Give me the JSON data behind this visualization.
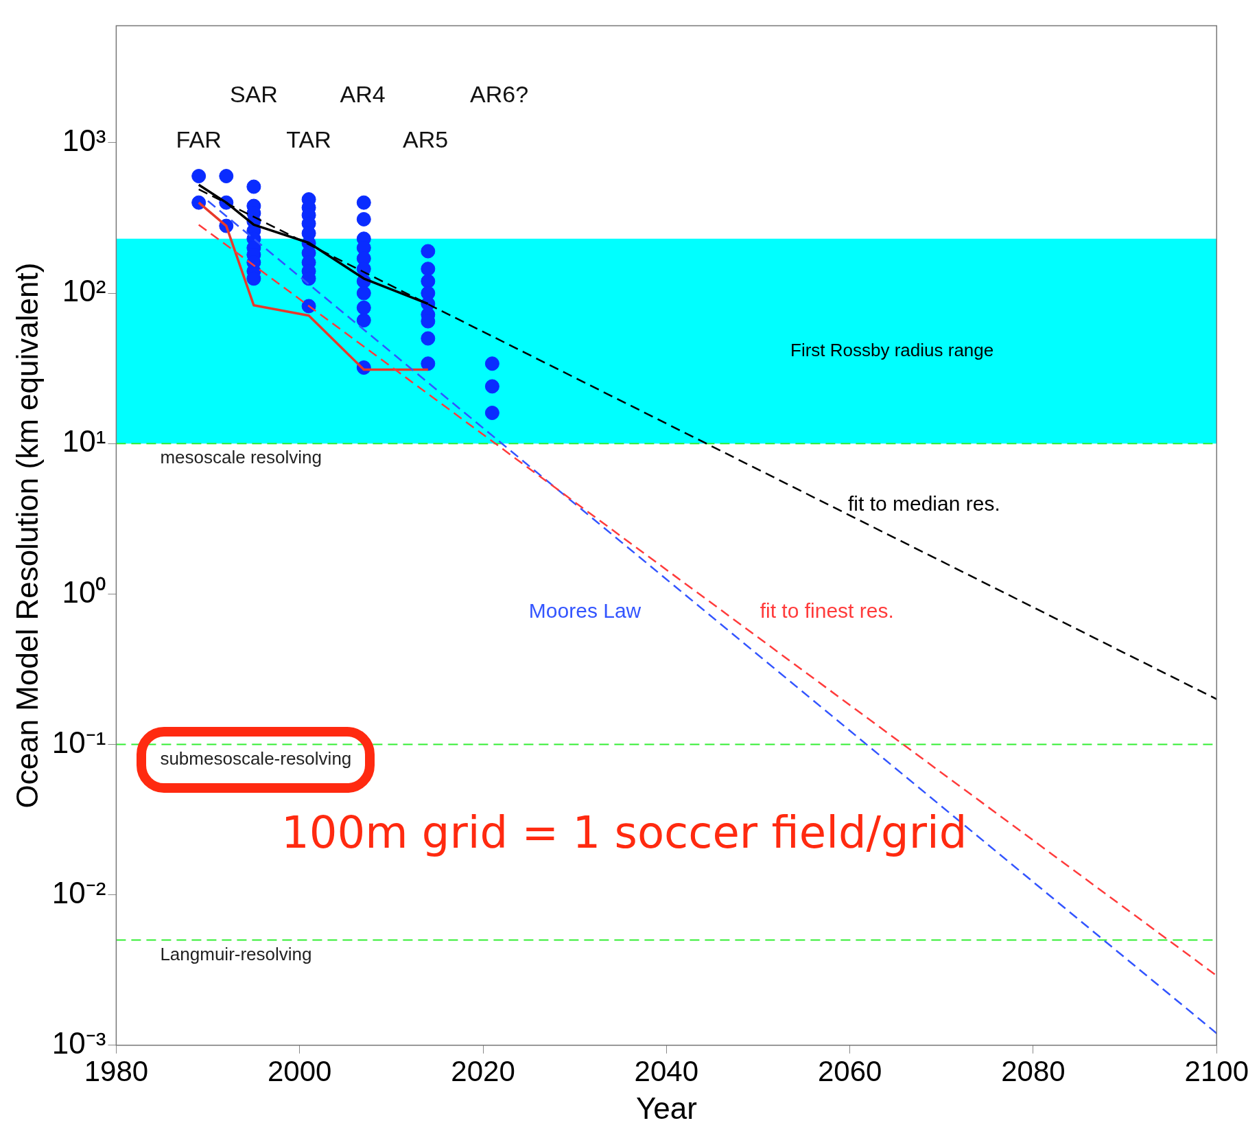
{
  "chart_data": {
    "type": "line",
    "xlabel": "Year",
    "ylabel": "Ocean Model Resolution (km equivalent)",
    "log": "y",
    "grid": false,
    "legend": false,
    "xlim": [
      1980,
      2100
    ],
    "xticks": [
      1980,
      2000,
      2020,
      2040,
      2060,
      2080,
      2100
    ],
    "ylim": [
      0.001,
      6000
    ],
    "yticks": [
      {
        "value": 0.001,
        "label": "10⁻³"
      },
      {
        "value": 0.01,
        "label": "10⁻²"
      },
      {
        "value": 0.1,
        "label": "10⁻¹"
      },
      {
        "value": 1,
        "label": "10⁰"
      },
      {
        "value": 10,
        "label": "10¹"
      },
      {
        "value": 100,
        "label": "10²"
      },
      {
        "value": 1000,
        "label": "10³"
      }
    ],
    "bands": [
      {
        "axis": "y",
        "from": 10,
        "to": 230,
        "label": "First Rossby radius range",
        "color": "#00ffff"
      }
    ],
    "ref_lines": [
      {
        "axis": "y",
        "value": 10,
        "label": "mesoscale resolving",
        "color": "#33ee33",
        "line_style": "dashed"
      },
      {
        "axis": "y",
        "value": 0.1,
        "label": "submesoscale-resolving",
        "color": "#33ee33",
        "line_style": "dashed"
      },
      {
        "axis": "y",
        "value": 0.005,
        "label": "Langmuir-resolving",
        "color": "#33ee33",
        "line_style": "dashed"
      }
    ],
    "series": [
      {
        "type": "line",
        "color": "#ff3b3b",
        "line_style": "dashed",
        "marker": "none",
        "name": "fit to finest res.",
        "x": [
          1989,
          2100
        ],
        "values": [
          285,
          0.0029
        ]
      },
      {
        "type": "line",
        "color": "#3355ff",
        "line_style": "dashed",
        "marker": "none",
        "name": "Moores Law",
        "x": [
          1990,
          2100
        ],
        "values": [
          410,
          0.0012
        ]
      },
      {
        "type": "line",
        "color": "#000000",
        "line_style": "dashed",
        "marker": "none",
        "name": "fit to median res.",
        "x": [
          1989,
          2100
        ],
        "values": [
          490,
          0.2
        ]
      },
      {
        "type": "scatter",
        "color": "#0a2cff",
        "marker": "circle",
        "x": [
          1989,
          1989,
          1992,
          1992,
          1992,
          1995,
          1995,
          1995,
          1995,
          1995,
          1995,
          1995,
          1995,
          1995,
          1995,
          1995,
          2001,
          2001,
          2001,
          2001,
          2001,
          2001,
          2001,
          2001,
          2001,
          2001,
          2001,
          2007,
          2007,
          2007,
          2007,
          2007,
          2007,
          2007,
          2007,
          2007,
          2007,
          2007,
          2014,
          2014,
          2014,
          2014,
          2014,
          2014,
          2014,
          2014,
          2014,
          2021,
          2021,
          2021
        ],
        "values": [
          600,
          400,
          600,
          400,
          280,
          510,
          380,
          340,
          300,
          260,
          230,
          200,
          180,
          160,
          140,
          125,
          420,
          370,
          330,
          290,
          250,
          215,
          185,
          160,
          140,
          125,
          82,
          400,
          310,
          230,
          200,
          170,
          145,
          120,
          100,
          80,
          66,
          32,
          190,
          145,
          120,
          100,
          85,
          72,
          65,
          50,
          34,
          34,
          24,
          16
        ]
      },
      {
        "type": "line",
        "color": "#000000",
        "line_style": "solid",
        "marker": "none",
        "x": [
          1989,
          1992,
          1995,
          2001,
          2007,
          2014
        ],
        "values": [
          525,
          400,
          285,
          216,
          125,
          85
        ]
      },
      {
        "type": "line",
        "color": "#e8382a",
        "line_style": "solid",
        "marker": "none",
        "x": [
          1989,
          1992,
          1995,
          2001,
          2007,
          2014
        ],
        "values": [
          400,
          280,
          83,
          71,
          31,
          31
        ]
      }
    ],
    "annotations": [
      "FAR",
      "SAR",
      "TAR",
      "AR4",
      "AR5",
      "AR6?",
      "100m grid = 1 soccer field/grid"
    ]
  }
}
